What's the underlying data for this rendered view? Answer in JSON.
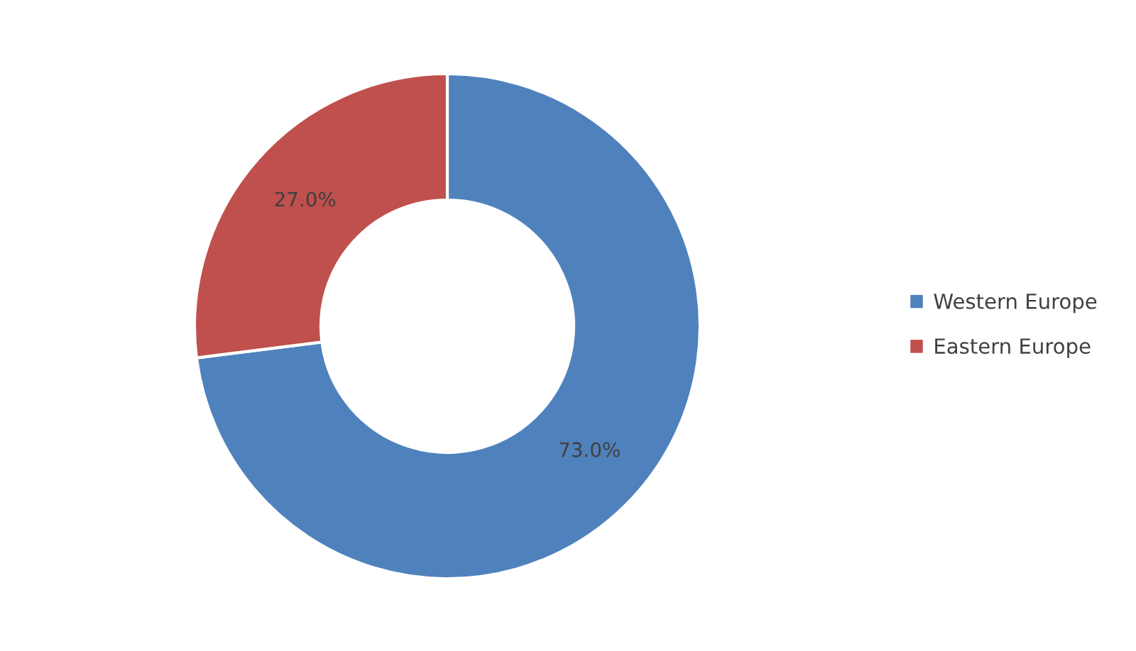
{
  "chart_data": {
    "type": "donut",
    "categories": [
      "Western Europe",
      "Eastern Europe"
    ],
    "values": [
      73.0,
      27.0
    ],
    "colors": [
      "#4f81bd",
      "#c0504d"
    ],
    "value_labels": [
      "73.0%",
      "27.0%"
    ],
    "legend": "right"
  }
}
